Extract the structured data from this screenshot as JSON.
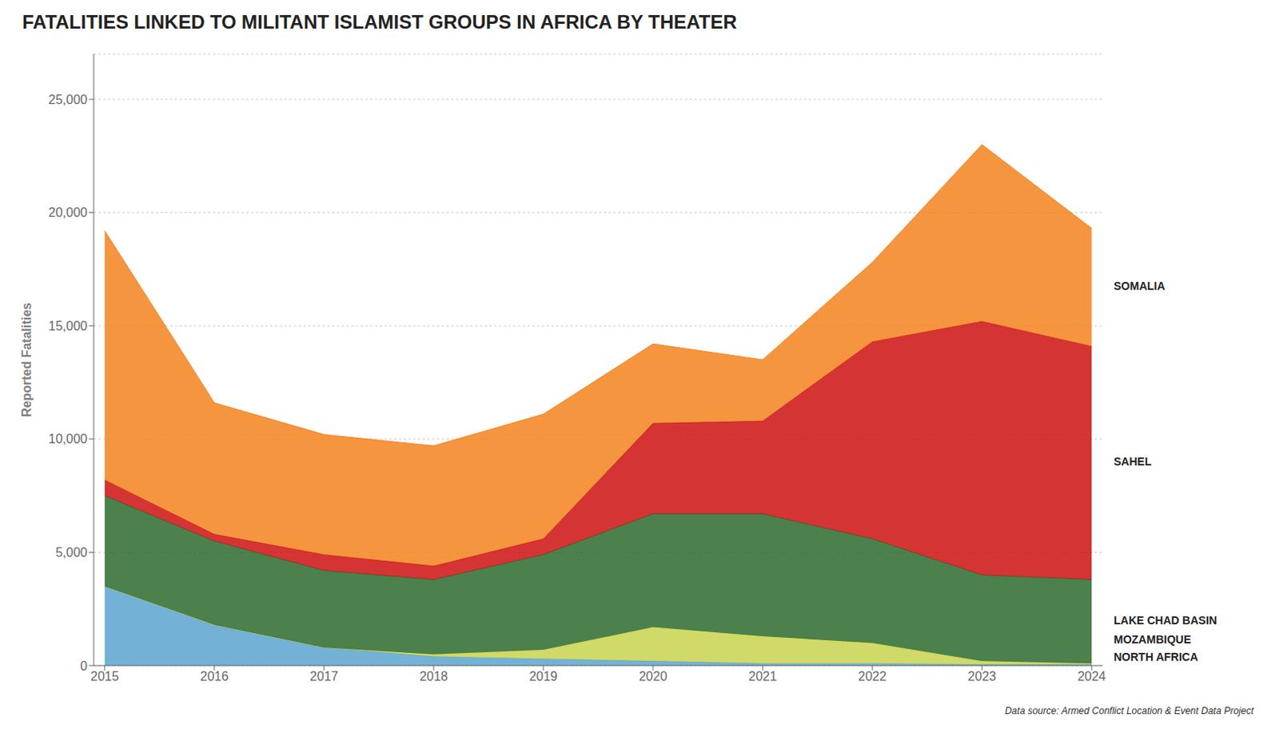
{
  "chart_data": {
    "type": "area",
    "stacked": true,
    "title": "FATALITIES LINKED TO MILITANT ISLAMIST GROUPS IN AFRICA BY THEATER",
    "y_label": "Reported Fatalities",
    "annotations": [
      "Data source: Armed Conflict Location & Event Data Project"
    ],
    "x": [
      2015,
      2016,
      2017,
      2018,
      2019,
      2020,
      2021,
      2022,
      2023,
      2024
    ],
    "series": [
      {
        "name": "NORTH AFRICA",
        "color": "#5BA4CF",
        "values": [
          3500,
          1800,
          800,
          400,
          300,
          200,
          100,
          100,
          50,
          50
        ]
      },
      {
        "name": "MOZAMBIQUE",
        "color": "#C8D44E",
        "values": [
          0,
          0,
          0,
          100,
          400,
          1500,
          1200,
          900,
          150,
          50
        ]
      },
      {
        "name": "LAKE CHAD BASIN",
        "color": "#2D6A2D",
        "values": [
          4000,
          3700,
          3400,
          3300,
          4200,
          5000,
          5400,
          4600,
          3800,
          3700
        ]
      },
      {
        "name": "SAHEL",
        "color": "#CC1111",
        "values": [
          700,
          300,
          700,
          600,
          700,
          4000,
          4100,
          8700,
          11200,
          10300
        ]
      },
      {
        "name": "SOMALIA",
        "color": "#F5821F",
        "values": [
          11000,
          5800,
          5300,
          5300,
          5500,
          3500,
          2700,
          3500,
          7800,
          5200
        ]
      }
    ],
    "xlim": [
      2014.9,
      2024.1
    ],
    "xticks": [
      2015,
      2016,
      2017,
      2018,
      2019,
      2020,
      2021,
      2022,
      2023,
      2024
    ],
    "ylim": [
      0,
      27000
    ],
    "yticks": [
      0,
      {
        "value": 5000,
        "label": "5,000"
      },
      {
        "value": 10000,
        "label": "10,000"
      },
      {
        "value": 15000,
        "label": "15,000"
      },
      {
        "value": 20000,
        "label": "20,000"
      },
      {
        "value": 25000,
        "label": "25,000"
      }
    ],
    "grid": true
  }
}
